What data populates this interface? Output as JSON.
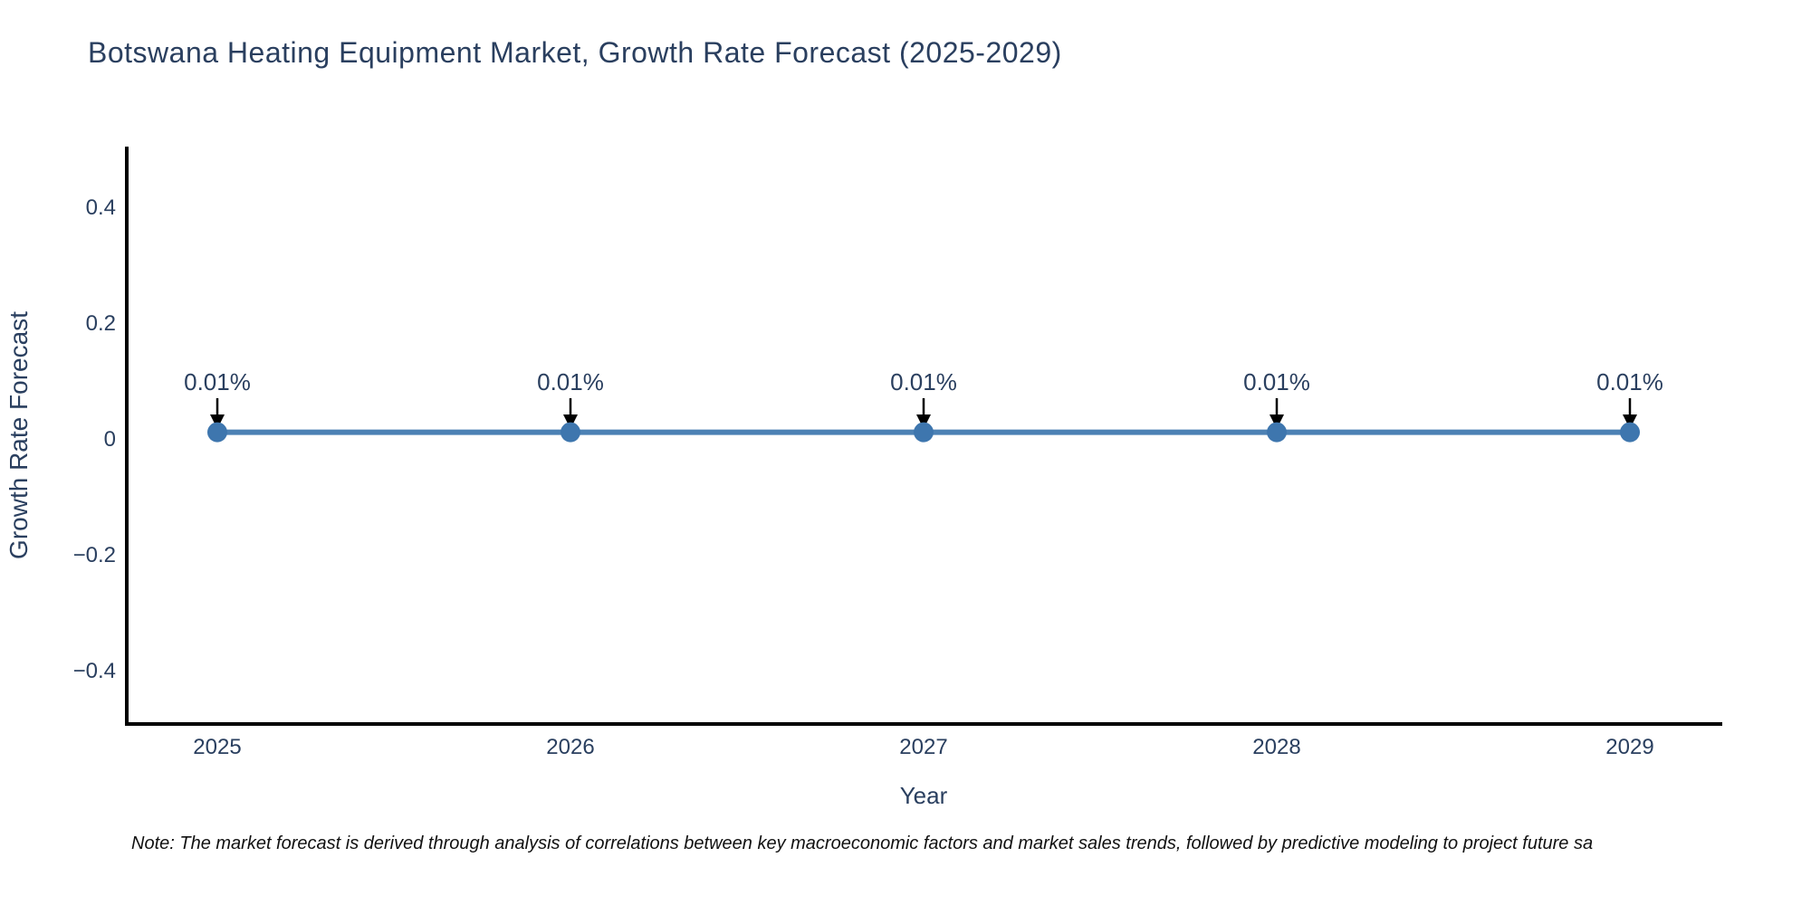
{
  "page": {
    "background_color": "#ffffff"
  },
  "chart_data": {
    "type": "line",
    "title": "Botswana Heating Equipment Market, Growth Rate Forecast (2025-2029)",
    "xlabel": "Year",
    "ylabel": "Growth Rate Forecast",
    "x": [
      2025,
      2026,
      2027,
      2028,
      2029
    ],
    "x_tick_labels": [
      "2025",
      "2026",
      "2027",
      "2028",
      "2029"
    ],
    "series": [
      {
        "name": "Growth Rate Forecast",
        "values": [
          0.01,
          0.01,
          0.01,
          0.01,
          0.01
        ]
      }
    ],
    "point_labels": [
      "0.01%",
      "0.01%",
      "0.01%",
      "0.01%",
      "0.01%"
    ],
    "y_ticks": {
      "values": [
        0.4,
        0.2,
        0,
        -0.2,
        -0.4
      ],
      "labels": [
        "0.4",
        "0.2",
        "0",
        "−0.2",
        "−0.4"
      ]
    },
    "ylim": [
      -0.5,
      0.5
    ],
    "grid": false,
    "legend": false,
    "marker_style": "circle",
    "annotation_arrow": "down",
    "colors": {
      "title_text": "#2a3f5f",
      "tick_text": "#2a3f5f",
      "axis_label_text": "#2a3f5f",
      "annotation_text": "#2a3f5f",
      "axis_spine": "#000000",
      "arrow": "#000000",
      "line": "#4c81b4",
      "marker": "#3e76ae",
      "note_text": "#111111"
    }
  },
  "note": {
    "text": "Note: The market forecast is derived through analysis of correlations between key macroeconomic factors and market sales trends, followed by predictive modeling to project future sa"
  }
}
